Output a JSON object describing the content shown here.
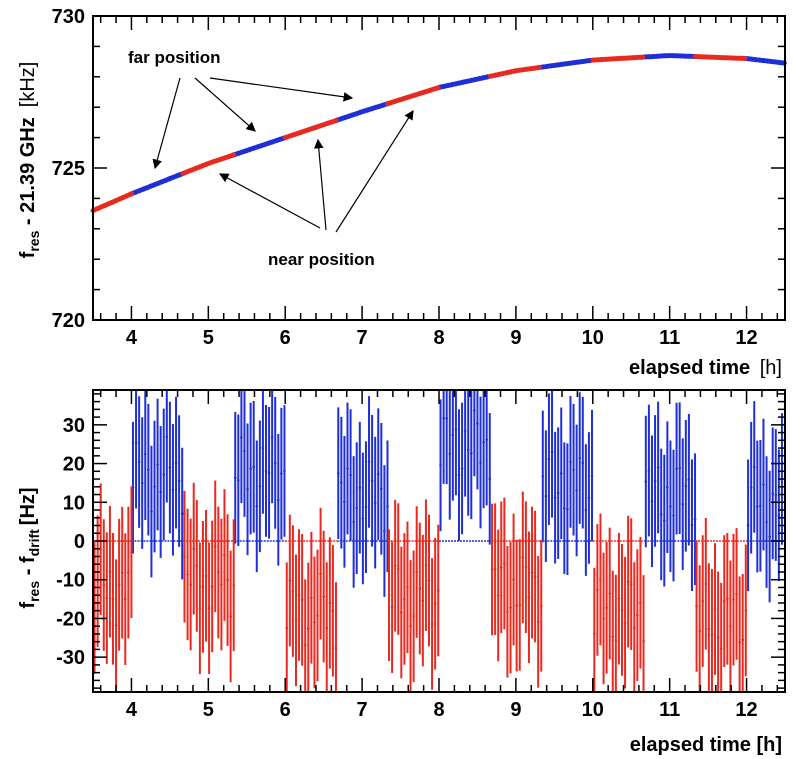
{
  "colors": {
    "far": "#1f2fd6",
    "near": "#e8291f",
    "axis": "#000000"
  },
  "chart_data": [
    {
      "type": "scatter",
      "xlabel": "elapsed time",
      "xunit": "[h]",
      "ylabel_main": "f",
      "ylabel_sub": "res",
      "ylabel_rest": " - 21.39 GHz",
      "yunit": "[kHz]",
      "xlim": [
        3.5,
        12.5
      ],
      "ylim": [
        720,
        730
      ],
      "x_ticks": [
        "4",
        "5",
        "6",
        "7",
        "8",
        "9",
        "10",
        "11",
        "12"
      ],
      "y_ticks": [
        "720",
        "725",
        "730"
      ],
      "grid": false,
      "annotations": {
        "far": "far position",
        "near": "near position"
      },
      "series": [
        {
          "name": "far position",
          "color_key": "far",
          "segments": [
            [
              4.0,
              4.67
            ],
            [
              5.33,
              6.0
            ],
            [
              6.67,
              7.33
            ],
            [
              8.0,
              8.67
            ],
            [
              9.33,
              10.0
            ],
            [
              10.67,
              11.33
            ],
            [
              12.0,
              12.5
            ]
          ]
        },
        {
          "name": "near position",
          "color_key": "near",
          "segments": [
            [
              3.5,
              4.0
            ],
            [
              4.67,
              5.33
            ],
            [
              6.0,
              6.67
            ],
            [
              7.33,
              8.0
            ],
            [
              8.67,
              9.33
            ],
            [
              10.0,
              10.67
            ],
            [
              11.33,
              12.0
            ]
          ]
        }
      ],
      "curve": {
        "x": [
          3.5,
          4.0,
          5.0,
          6.0,
          7.0,
          8.0,
          9.0,
          10.0,
          11.0,
          11.5,
          12.0,
          12.5
        ],
        "y": [
          723.6,
          724.15,
          725.15,
          726.0,
          726.85,
          727.65,
          728.2,
          728.55,
          728.7,
          728.65,
          728.6,
          728.45
        ]
      }
    },
    {
      "type": "scatter",
      "xlabel": "elapsed time [h]",
      "ylabel_main": "f",
      "ylabel_sub1": "res",
      "ylabel_mid": " - f",
      "ylabel_sub2": "drift",
      "yunit": "[Hz]",
      "xlim": [
        3.5,
        12.5
      ],
      "ylim": [
        -39,
        39
      ],
      "x_ticks": [
        "4",
        "5",
        "6",
        "7",
        "8",
        "9",
        "10",
        "11",
        "12"
      ],
      "y_ticks": [
        "-30",
        "-20",
        "-10",
        "0",
        "10",
        "20",
        "30"
      ],
      "grid": false,
      "error_bar_halfwidth": 17,
      "series": [
        {
          "name": "far position",
          "color_key": "far",
          "segments": [
            {
              "start": 4.0,
              "end": 4.67,
              "offset": 17
            },
            {
              "start": 5.33,
              "end": 6.0,
              "offset": 18
            },
            {
              "start": 6.67,
              "end": 7.33,
              "offset": 12
            },
            {
              "start": 8.0,
              "end": 8.67,
              "offset": 25
            },
            {
              "start": 9.33,
              "end": 10.0,
              "offset": 15
            },
            {
              "start": 10.67,
              "end": 11.33,
              "offset": 12
            },
            {
              "start": 12.0,
              "end": 12.5,
              "offset": 10
            }
          ]
        },
        {
          "name": "near position",
          "color_key": "near",
          "segments": [
            {
              "start": 3.5,
              "end": 4.0,
              "offset": -12
            },
            {
              "start": 4.67,
              "end": 5.33,
              "offset": -10
            },
            {
              "start": 6.0,
              "end": 6.67,
              "offset": -18
            },
            {
              "start": 7.33,
              "end": 8.0,
              "offset": -14
            },
            {
              "start": 8.67,
              "end": 9.33,
              "offset": -12
            },
            {
              "start": 10.0,
              "end": 10.67,
              "offset": -18
            },
            {
              "start": 11.33,
              "end": 12.0,
              "offset": -20
            }
          ]
        }
      ]
    }
  ]
}
